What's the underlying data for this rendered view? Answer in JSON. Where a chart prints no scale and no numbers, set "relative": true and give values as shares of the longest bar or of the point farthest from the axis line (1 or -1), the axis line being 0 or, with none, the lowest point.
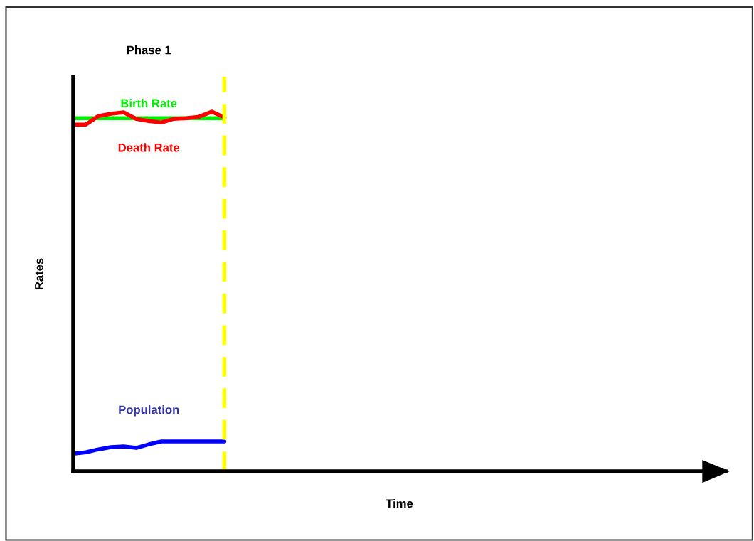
{
  "chart_data": {
    "type": "line",
    "relative": true,
    "xlabel": "Time",
    "ylabel": "Rates",
    "annotations": [
      "Phase 1"
    ],
    "categories": [
      null,
      null,
      null,
      null,
      null,
      null,
      null,
      null,
      null,
      null,
      null,
      null,
      null,
      null,
      null,
      null,
      null,
      null,
      null,
      null,
      null,
      null,
      null,
      null,
      null,
      null,
      null,
      null,
      null,
      null,
      null,
      null,
      null,
      null,
      null,
      null,
      null,
      null,
      null,
      null,
      null,
      null,
      null,
      null,
      null,
      null,
      null,
      null,
      null,
      null,
      null,
      null
    ],
    "series": [
      {
        "name": "Birth Rate",
        "color": "#00ee00",
        "values": [
          0.982,
          0.982,
          0.982,
          0.982,
          0.982,
          0.982,
          0.982,
          0.982,
          0.982,
          0.982,
          0.982,
          0.982,
          0.982,
          null,
          null,
          null,
          null,
          null,
          null,
          null,
          null,
          null,
          null,
          null,
          null,
          null,
          null,
          null,
          null,
          null,
          null,
          null,
          null,
          null,
          null,
          null,
          null,
          null,
          null,
          null,
          null,
          null,
          null,
          null,
          null,
          null,
          null,
          null,
          null,
          null,
          null,
          null
        ]
      },
      {
        "name": "Death Rate",
        "color": "#ff0000",
        "values": [
          0.964,
          0.964,
          0.988,
          0.994,
          0.998,
          0.98,
          0.974,
          0.97,
          0.98,
          0.982,
          0.986,
          1,
          0.984,
          null,
          null,
          null,
          null,
          null,
          null,
          null,
          null,
          null,
          null,
          null,
          null,
          null,
          null,
          null,
          null,
          null,
          null,
          null,
          null,
          null,
          null,
          null,
          null,
          null,
          null,
          null,
          null,
          null,
          null,
          null,
          null,
          null,
          null,
          null,
          null,
          null,
          null,
          null
        ]
      },
      {
        "name": "Population",
        "color": "#0000ff",
        "values": [
          0.049,
          0.053,
          0.061,
          0.067,
          0.069,
          0.065,
          0.075,
          0.083,
          0.083,
          0.083,
          0.083,
          0.083,
          0.083,
          null,
          null,
          null,
          null,
          null,
          null,
          null,
          null,
          null,
          null,
          null,
          null,
          null,
          null,
          null,
          null,
          null,
          null,
          null,
          null,
          null,
          null,
          null,
          null,
          null,
          null,
          null,
          null,
          null,
          null,
          null,
          null,
          null,
          null,
          null,
          null,
          null,
          null,
          null
        ]
      }
    ],
    "line_style": "solid"
  }
}
